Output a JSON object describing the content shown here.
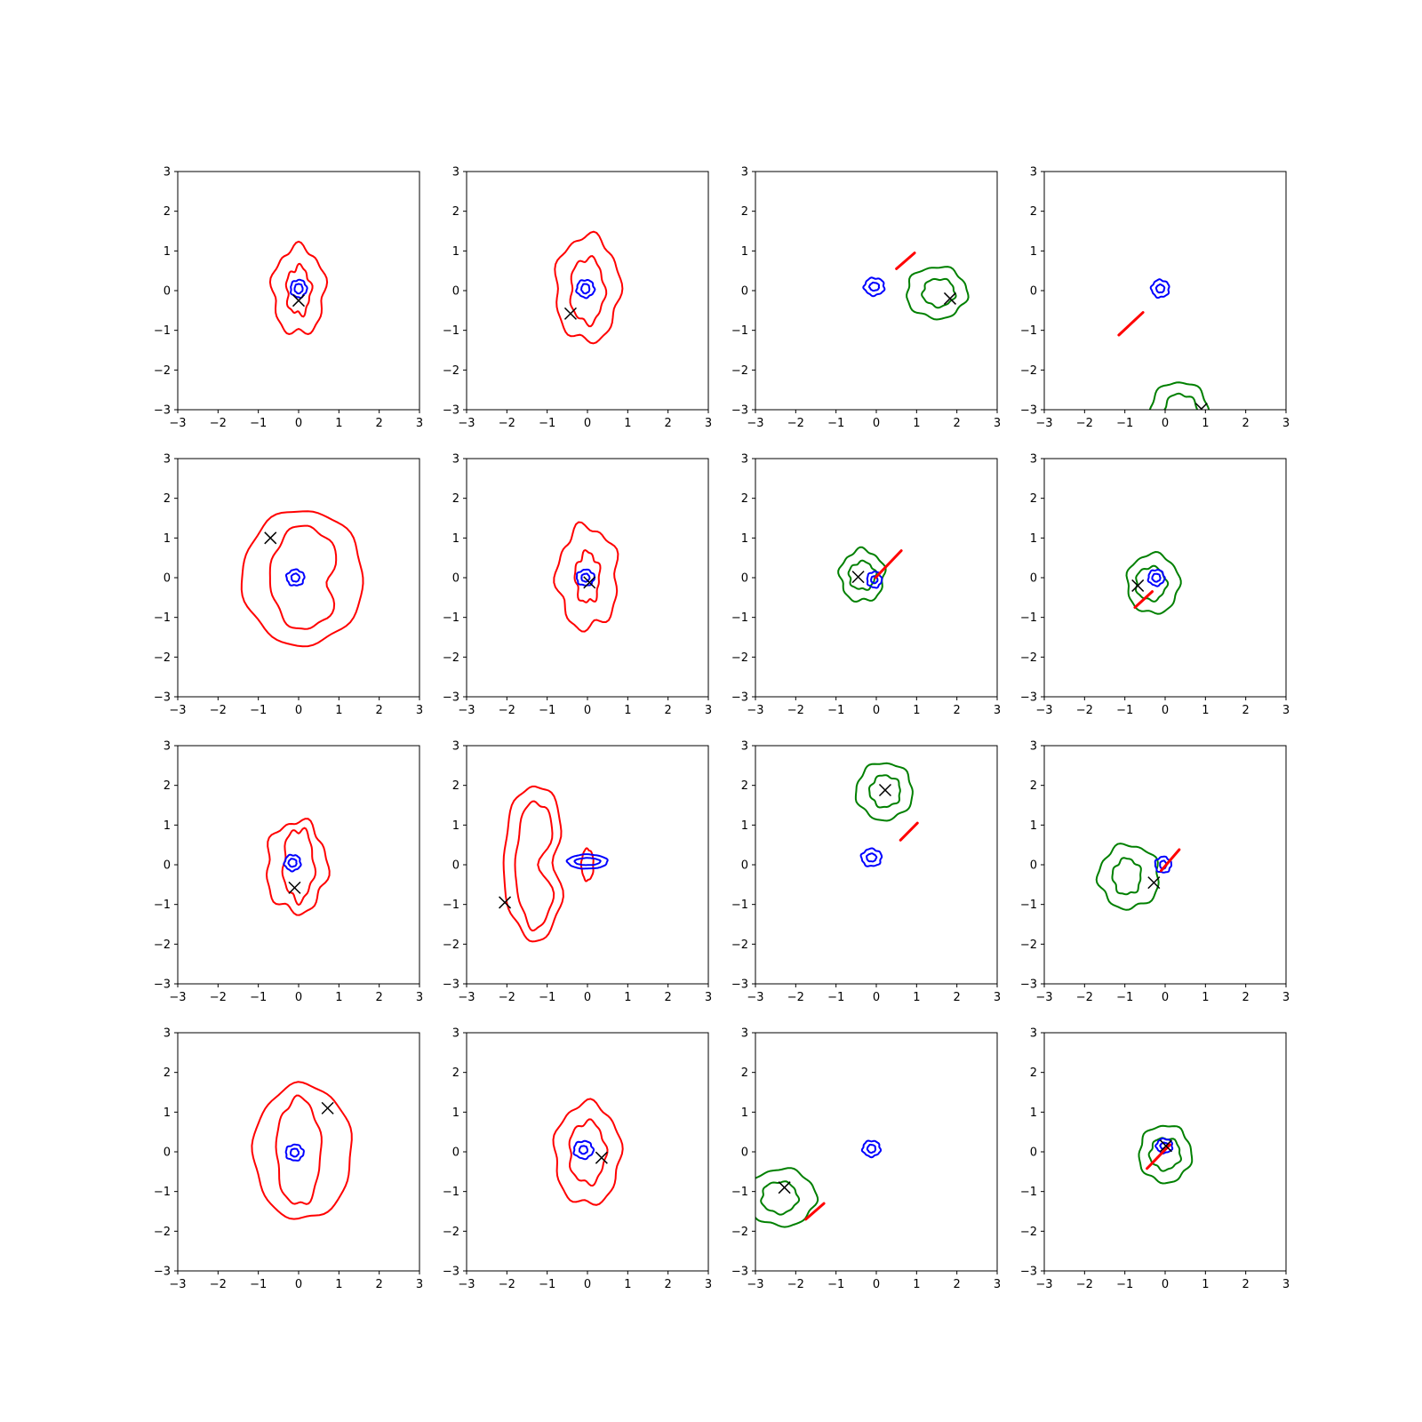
{
  "chart_data": {
    "type": "contour",
    "description_rows": 4,
    "description_cols": 4,
    "xlim": [
      -3,
      3
    ],
    "ylim": [
      -3,
      3
    ],
    "xticks": [
      -3,
      -2,
      -1,
      0,
      1,
      2,
      3
    ],
    "yticks": [
      -3,
      -2,
      -1,
      0,
      1,
      2,
      3
    ],
    "xtick_labels": [
      "−3",
      "−2",
      "−1",
      "0",
      "1",
      "2",
      "3"
    ],
    "ytick_labels": [
      "−3",
      "−2",
      "−1",
      "0",
      "1",
      "2",
      "3"
    ],
    "colors": {
      "red": "#ff0000",
      "blue": "#0000ff",
      "green": "#008000",
      "marker": "#000000"
    },
    "panels": [
      {
        "contours": [
          {
            "color": "red",
            "cx": 0,
            "cy": 0,
            "rx": 0.65,
            "ry": 1.1,
            "wobble": 0.08
          },
          {
            "color": "red",
            "cx": 0,
            "cy": 0,
            "rx": 0.3,
            "ry": 0.6,
            "wobble": 0.05
          },
          {
            "color": "blue",
            "cx": 0,
            "cy": 0.05,
            "rx": 0.2,
            "ry": 0.22,
            "wobble": 0.03
          },
          {
            "color": "blue",
            "cx": 0,
            "cy": 0.05,
            "rx": 0.1,
            "ry": 0.12,
            "wobble": 0.02
          }
        ],
        "lines": [],
        "marker": [
          0,
          -0.25
        ]
      },
      {
        "contours": [
          {
            "color": "red",
            "cx": 0,
            "cy": 0.05,
            "rx": 0.8,
            "ry": 1.33,
            "wobble": 0.08
          },
          {
            "color": "red",
            "cx": 0,
            "cy": 0,
            "rx": 0.42,
            "ry": 0.82,
            "wobble": 0.05
          },
          {
            "color": "blue",
            "cx": -0.05,
            "cy": 0.05,
            "rx": 0.22,
            "ry": 0.22,
            "wobble": 0.03
          },
          {
            "color": "blue",
            "cx": -0.05,
            "cy": 0.05,
            "rx": 0.1,
            "ry": 0.12,
            "wobble": 0.02
          }
        ],
        "lines": [],
        "marker": [
          -0.42,
          -0.58
        ]
      },
      {
        "contours": [
          {
            "color": "green",
            "cx": 1.5,
            "cy": -0.05,
            "rx": 0.75,
            "ry": 0.65,
            "wobble": 0.06
          },
          {
            "color": "green",
            "cx": 1.55,
            "cy": -0.05,
            "rx": 0.4,
            "ry": 0.35,
            "wobble": 0.04
          },
          {
            "color": "blue",
            "cx": -0.05,
            "cy": 0.1,
            "rx": 0.25,
            "ry": 0.22,
            "wobble": 0.03
          },
          {
            "color": "blue",
            "cx": -0.05,
            "cy": 0.1,
            "rx": 0.12,
            "ry": 0.1,
            "wobble": 0.02
          }
        ],
        "lines": [
          {
            "x1": 0.5,
            "y1": 0.55,
            "x2": 0.95,
            "y2": 0.95
          }
        ],
        "marker": [
          1.83,
          -0.2
        ]
      },
      {
        "contours": [
          {
            "color": "green",
            "cx": 0.35,
            "cy": -3.15,
            "rx": 0.75,
            "ry": 0.85,
            "wobble": 0.05
          },
          {
            "color": "green",
            "cx": 0.38,
            "cy": -3.2,
            "rx": 0.45,
            "ry": 0.6,
            "wobble": 0.04
          },
          {
            "color": "blue",
            "cx": -0.12,
            "cy": 0.05,
            "rx": 0.22,
            "ry": 0.22,
            "wobble": 0.03
          },
          {
            "color": "blue",
            "cx": -0.12,
            "cy": 0.05,
            "rx": 0.1,
            "ry": 0.1,
            "wobble": 0.02
          }
        ],
        "lines": [
          {
            "x1": -1.15,
            "y1": -1.12,
            "x2": -0.55,
            "y2": -0.55
          }
        ],
        "marker": [
          0.9,
          -2.98
        ]
      },
      {
        "contours": [
          {
            "color": "red",
            "cx": 0.1,
            "cy": 0,
            "rx": 1.5,
            "ry": 1.7,
            "wobble": 0.06
          },
          {
            "color": "red",
            "cx": 0.15,
            "cy": 0,
            "rx": 0.85,
            "ry": 1.3,
            "wobble": 0.05,
            "dent": 0.35
          },
          {
            "color": "blue",
            "cx": -0.08,
            "cy": 0,
            "rx": 0.22,
            "ry": 0.2,
            "wobble": 0.03
          },
          {
            "color": "blue",
            "cx": -0.08,
            "cy": 0,
            "rx": 0.1,
            "ry": 0.1,
            "wobble": 0.02
          }
        ],
        "lines": [],
        "marker": [
          -0.7,
          1.0
        ]
      },
      {
        "contours": [
          {
            "color": "red",
            "cx": 0,
            "cy": 0,
            "rx": 0.75,
            "ry": 1.28,
            "wobble": 0.1
          },
          {
            "color": "red",
            "cx": 0,
            "cy": 0,
            "rx": 0.3,
            "ry": 0.63,
            "wobble": 0.05
          },
          {
            "color": "blue",
            "cx": -0.05,
            "cy": 0,
            "rx": 0.22,
            "ry": 0.2,
            "wobble": 0.03
          },
          {
            "color": "blue",
            "cx": -0.05,
            "cy": 0,
            "rx": 0.1,
            "ry": 0.1,
            "wobble": 0.02
          }
        ],
        "lines": [],
        "marker": [
          0.05,
          -0.12
        ]
      },
      {
        "contours": [
          {
            "color": "green",
            "cx": -0.35,
            "cy": 0.05,
            "rx": 0.55,
            "ry": 0.65,
            "wobble": 0.06
          },
          {
            "color": "green",
            "cx": -0.35,
            "cy": 0.05,
            "rx": 0.33,
            "ry": 0.35,
            "wobble": 0.04
          },
          {
            "color": "blue",
            "cx": -0.05,
            "cy": -0.05,
            "rx": 0.18,
            "ry": 0.2,
            "wobble": 0.03
          },
          {
            "color": "blue",
            "cx": -0.05,
            "cy": -0.05,
            "rx": 0.08,
            "ry": 0.09,
            "wobble": 0.02
          }
        ],
        "lines": [
          {
            "x1": -0.02,
            "y1": 0.0,
            "x2": 0.62,
            "y2": 0.68
          }
        ],
        "marker": [
          -0.45,
          0.02
        ]
      },
      {
        "contours": [
          {
            "color": "green",
            "cx": -0.3,
            "cy": -0.15,
            "rx": 0.65,
            "ry": 0.75,
            "wobble": 0.05
          },
          {
            "color": "green",
            "cx": -0.35,
            "cy": -0.15,
            "rx": 0.38,
            "ry": 0.42,
            "wobble": 0.04
          },
          {
            "color": "blue",
            "cx": -0.22,
            "cy": 0.0,
            "rx": 0.2,
            "ry": 0.2,
            "wobble": 0.03
          },
          {
            "color": "blue",
            "cx": -0.22,
            "cy": 0.0,
            "rx": 0.1,
            "ry": 0.1,
            "wobble": 0.02
          }
        ],
        "lines": [
          {
            "x1": -0.75,
            "y1": -0.75,
            "x2": -0.32,
            "y2": -0.35
          }
        ],
        "marker": [
          -0.68,
          -0.2
        ]
      },
      {
        "contours": [
          {
            "color": "red",
            "cx": -0.05,
            "cy": -0.05,
            "rx": 0.75,
            "ry": 1.15,
            "wobble": 0.09
          },
          {
            "color": "red",
            "cx": 0.0,
            "cy": 0.0,
            "rx": 0.38,
            "ry": 0.9,
            "wobble": 0.05
          },
          {
            "color": "blue",
            "cx": -0.15,
            "cy": 0.05,
            "rx": 0.2,
            "ry": 0.2,
            "wobble": 0.03
          },
          {
            "color": "blue",
            "cx": -0.15,
            "cy": 0.05,
            "rx": 0.1,
            "ry": 0.1,
            "wobble": 0.02
          }
        ],
        "lines": [],
        "marker": [
          -0.1,
          -0.58
        ]
      },
      {
        "contours": [
          {
            "color": "red",
            "cx": -1.3,
            "cy": 0.05,
            "rx": 0.78,
            "ry": 1.95,
            "wobble": 0.04,
            "waist": 0.45
          },
          {
            "color": "red",
            "cx": -1.28,
            "cy": 0.0,
            "rx": 0.5,
            "ry": 1.6,
            "wobble": 0.03,
            "waist": 0.9
          },
          {
            "color": "red",
            "cx": 0.0,
            "cy": 0.0,
            "rx": 0.15,
            "ry": 0.4,
            "wobble": 0.02
          },
          {
            "color": "blue",
            "cx": 0.0,
            "cy": 0.08,
            "rx": 0.5,
            "ry": 0.18,
            "wobble": 0.02
          },
          {
            "color": "blue",
            "cx": 0.0,
            "cy": 0.08,
            "rx": 0.32,
            "ry": 0.09,
            "wobble": 0.01
          }
        ],
        "lines": [],
        "marker": [
          -2.05,
          -0.95
        ]
      },
      {
        "contours": [
          {
            "color": "green",
            "cx": 0.2,
            "cy": 1.85,
            "rx": 0.7,
            "ry": 0.72,
            "wobble": 0.05
          },
          {
            "color": "green",
            "cx": 0.22,
            "cy": 1.85,
            "rx": 0.38,
            "ry": 0.4,
            "wobble": 0.04
          },
          {
            "color": "blue",
            "cx": -0.12,
            "cy": 0.18,
            "rx": 0.25,
            "ry": 0.22,
            "wobble": 0.03
          },
          {
            "color": "blue",
            "cx": -0.12,
            "cy": 0.18,
            "rx": 0.12,
            "ry": 0.1,
            "wobble": 0.02
          }
        ],
        "lines": [
          {
            "x1": 0.6,
            "y1": 0.62,
            "x2": 1.02,
            "y2": 1.05
          }
        ],
        "marker": [
          0.22,
          1.88
        ]
      },
      {
        "contours": [
          {
            "color": "green",
            "cx": -0.9,
            "cy": -0.3,
            "rx": 0.75,
            "ry": 0.8,
            "wobble": 0.07
          },
          {
            "color": "green",
            "cx": -0.95,
            "cy": -0.3,
            "rx": 0.35,
            "ry": 0.45,
            "wobble": 0.04
          },
          {
            "color": "blue",
            "cx": -0.05,
            "cy": 0.0,
            "rx": 0.2,
            "ry": 0.2,
            "wobble": 0.03
          },
          {
            "color": "blue",
            "cx": -0.05,
            "cy": 0.0,
            "rx": 0.08,
            "ry": 0.1,
            "wobble": 0.02
          }
        ],
        "lines": [
          {
            "x1": -0.1,
            "y1": -0.15,
            "x2": 0.35,
            "y2": 0.38
          }
        ],
        "marker": [
          -0.28,
          -0.45
        ]
      },
      {
        "contours": [
          {
            "color": "red",
            "cx": 0.1,
            "cy": 0,
            "rx": 1.22,
            "ry": 1.7,
            "wobble": 0.05
          },
          {
            "color": "red",
            "cx": 0.0,
            "cy": 0,
            "rx": 0.55,
            "ry": 1.35,
            "wobble": 0.04
          },
          {
            "color": "blue",
            "cx": -0.1,
            "cy": -0.02,
            "rx": 0.22,
            "ry": 0.2,
            "wobble": 0.03
          },
          {
            "color": "blue",
            "cx": -0.1,
            "cy": -0.02,
            "rx": 0.1,
            "ry": 0.1,
            "wobble": 0.02
          }
        ],
        "lines": [],
        "marker": [
          0.72,
          1.1
        ]
      },
      {
        "contours": [
          {
            "color": "red",
            "cx": 0.0,
            "cy": -0.05,
            "rx": 0.82,
            "ry": 1.28,
            "wobble": 0.07
          },
          {
            "color": "red",
            "cx": 0.0,
            "cy": -0.02,
            "rx": 0.45,
            "ry": 0.78,
            "wobble": 0.05
          },
          {
            "color": "blue",
            "cx": -0.1,
            "cy": 0.05,
            "rx": 0.24,
            "ry": 0.22,
            "wobble": 0.03
          },
          {
            "color": "blue",
            "cx": -0.1,
            "cy": 0.05,
            "rx": 0.1,
            "ry": 0.1,
            "wobble": 0.02
          }
        ],
        "lines": [],
        "marker": [
          0.35,
          -0.15
        ]
      },
      {
        "contours": [
          {
            "color": "green",
            "cx": -2.35,
            "cy": -1.15,
            "rx": 0.85,
            "ry": 0.72,
            "wobble": 0.06
          },
          {
            "color": "green",
            "cx": -2.4,
            "cy": -1.15,
            "rx": 0.45,
            "ry": 0.4,
            "wobble": 0.04
          },
          {
            "color": "blue",
            "cx": -0.12,
            "cy": 0.08,
            "rx": 0.22,
            "ry": 0.2,
            "wobble": 0.03
          },
          {
            "color": "blue",
            "cx": -0.12,
            "cy": 0.08,
            "rx": 0.1,
            "ry": 0.1,
            "wobble": 0.02
          }
        ],
        "lines": [
          {
            "x1": -1.75,
            "y1": -1.7,
            "x2": -1.3,
            "y2": -1.3
          }
        ],
        "marker": [
          -2.28,
          -0.9
        ]
      },
      {
        "contours": [
          {
            "color": "green",
            "cx": 0.0,
            "cy": -0.05,
            "rx": 0.65,
            "ry": 0.72,
            "wobble": 0.05
          },
          {
            "color": "green",
            "cx": 0.0,
            "cy": -0.05,
            "rx": 0.38,
            "ry": 0.4,
            "wobble": 0.04
          },
          {
            "color": "blue",
            "cx": -0.02,
            "cy": 0.15,
            "rx": 0.2,
            "ry": 0.18,
            "wobble": 0.03
          },
          {
            "color": "blue",
            "cx": -0.02,
            "cy": 0.15,
            "rx": 0.1,
            "ry": 0.08,
            "wobble": 0.02
          }
        ],
        "lines": [
          {
            "x1": -0.45,
            "y1": -0.42,
            "x2": 0.12,
            "y2": 0.18
          }
        ],
        "marker": [
          0.02,
          0.15
        ]
      }
    ]
  }
}
